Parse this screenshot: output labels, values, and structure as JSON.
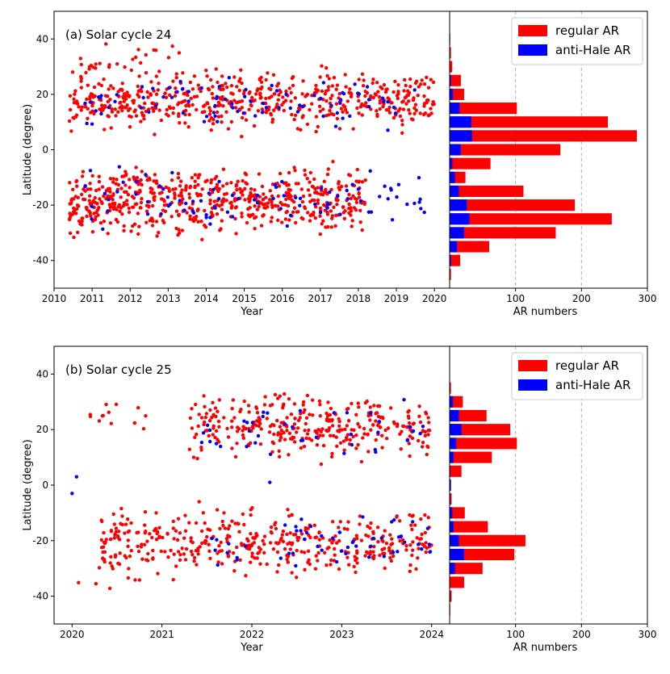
{
  "chart_data": [
    {
      "type": "scatter",
      "title": "(a) Solar cycle 24",
      "xlabel": "Year",
      "ylabel": "Latitude (degree)",
      "xlim": [
        2010,
        2020.4
      ],
      "ylim": [
        -50,
        50
      ],
      "xticks": [
        2010,
        2011,
        2012,
        2013,
        2014,
        2015,
        2016,
        2017,
        2018,
        2019,
        2020
      ],
      "yticks": [
        -40,
        -20,
        0,
        20,
        40
      ],
      "colors": {
        "regular": "#ff0000",
        "anti": "#0000ff"
      },
      "scatter_regions": [
        {
          "series": "regular",
          "x": [
            2010.4,
            2020.0
          ],
          "y": [
            4,
            32
          ],
          "count": 560,
          "seed": 11
        },
        {
          "series": "regular",
          "x": [
            2010.4,
            2018.2
          ],
          "y": [
            -34,
            -2
          ],
          "count": 620,
          "seed": 12
        },
        {
          "series": "regular",
          "x": [
            2010.6,
            2013.5
          ],
          "y": [
            24,
            40
          ],
          "count": 30,
          "seed": 13
        },
        {
          "series": "anti",
          "x": [
            2010.8,
            2019.5
          ],
          "y": [
            4,
            30
          ],
          "count": 85,
          "seed": 14
        },
        {
          "series": "anti",
          "x": [
            2010.8,
            2020.1
          ],
          "y": [
            -32,
            -4
          ],
          "count": 90,
          "seed": 15
        }
      ],
      "histogram": {
        "xlabel": "AR numbers",
        "xlim": [
          0,
          300
        ],
        "xticks": [
          100,
          200,
          300
        ],
        "grid": true,
        "bins": [
          {
            "lat": 40,
            "regular": 1,
            "anti": 0
          },
          {
            "lat": 35,
            "regular": 2,
            "anti": 0
          },
          {
            "lat": 30,
            "regular": 4,
            "anti": 0
          },
          {
            "lat": 25,
            "regular": 17,
            "anti": 2
          },
          {
            "lat": 20,
            "regular": 22,
            "anti": 5
          },
          {
            "lat": 15,
            "regular": 102,
            "anti": 15
          },
          {
            "lat": 10,
            "regular": 240,
            "anti": 33
          },
          {
            "lat": 5,
            "regular": 284,
            "anti": 34
          },
          {
            "lat": 0,
            "regular": 168,
            "anti": 17
          },
          {
            "lat": -5,
            "regular": 62,
            "anti": 4
          },
          {
            "lat": -10,
            "regular": 24,
            "anti": 8
          },
          {
            "lat": -15,
            "regular": 112,
            "anti": 14
          },
          {
            "lat": -20,
            "regular": 190,
            "anti": 26
          },
          {
            "lat": -25,
            "regular": 246,
            "anti": 30
          },
          {
            "lat": -30,
            "regular": 161,
            "anti": 22
          },
          {
            "lat": -35,
            "regular": 60,
            "anti": 11
          },
          {
            "lat": -40,
            "regular": 16,
            "anti": 2
          },
          {
            "lat": -45,
            "regular": 2,
            "anti": 0
          }
        ]
      },
      "legend": {
        "placement": "top-right",
        "entries": [
          "regular AR",
          "anti-Hale AR"
        ]
      }
    },
    {
      "type": "scatter",
      "title": "(b) Solar cycle 25",
      "xlabel": "Year",
      "ylabel": "Latitude (degree)",
      "xlim": [
        2019.8,
        2024.2
      ],
      "ylim": [
        -50,
        50
      ],
      "xticks": [
        2020,
        2021,
        2022,
        2023,
        2024
      ],
      "yticks": [
        -40,
        -20,
        0,
        20,
        40
      ],
      "colors": {
        "regular": "#ff0000",
        "anti": "#0000ff"
      },
      "scatter_regions": [
        {
          "series": "regular",
          "x": [
            2021.3,
            2024.0
          ],
          "y": [
            6,
            36
          ],
          "count": 330,
          "seed": 21
        },
        {
          "series": "regular",
          "x": [
            2020.2,
            2021.0
          ],
          "y": [
            19,
            34
          ],
          "count": 14,
          "seed": 22
        },
        {
          "series": "regular",
          "x": [
            2020.3,
            2024.0
          ],
          "y": [
            -36,
            -5
          ],
          "count": 420,
          "seed": 23
        },
        {
          "series": "regular",
          "x": [
            2020.0,
            2020.8
          ],
          "y": [
            -40,
            -30
          ],
          "count": 6,
          "seed": 24
        },
        {
          "series": "anti",
          "x": [
            2021.3,
            2024.0
          ],
          "y": [
            6,
            34
          ],
          "count": 40,
          "seed": 25
        },
        {
          "series": "anti",
          "x": [
            2021.5,
            2024.0
          ],
          "y": [
            -36,
            -6
          ],
          "count": 55,
          "seed": 26
        }
      ],
      "extra_points": {
        "anti": [
          [
            2020.0,
            -3
          ],
          [
            2020.05,
            3
          ],
          [
            2022.2,
            1
          ]
        ],
        "regular": []
      },
      "histogram": {
        "xlabel": "AR numbers",
        "xlim": [
          0,
          300
        ],
        "xticks": [
          100,
          200,
          300
        ],
        "grid": true,
        "bins": [
          {
            "lat": 40,
            "regular": 0,
            "anti": 0
          },
          {
            "lat": 35,
            "regular": 2,
            "anti": 0
          },
          {
            "lat": 30,
            "regular": 20,
            "anti": 5
          },
          {
            "lat": 25,
            "regular": 56,
            "anti": 14
          },
          {
            "lat": 20,
            "regular": 92,
            "anti": 18
          },
          {
            "lat": 15,
            "regular": 102,
            "anti": 10
          },
          {
            "lat": 10,
            "regular": 64,
            "anti": 6
          },
          {
            "lat": 5,
            "regular": 18,
            "anti": 1
          },
          {
            "lat": 0,
            "regular": 2,
            "anti": 2
          },
          {
            "lat": -5,
            "regular": 3,
            "anti": 1
          },
          {
            "lat": -10,
            "regular": 23,
            "anti": 4
          },
          {
            "lat": -15,
            "regular": 58,
            "anti": 6
          },
          {
            "lat": -20,
            "regular": 115,
            "anti": 14
          },
          {
            "lat": -25,
            "regular": 98,
            "anti": 22
          },
          {
            "lat": -30,
            "regular": 50,
            "anti": 8
          },
          {
            "lat": -35,
            "regular": 22,
            "anti": 0
          },
          {
            "lat": -40,
            "regular": 3,
            "anti": 1
          },
          {
            "lat": -45,
            "regular": 1,
            "anti": 0
          }
        ]
      },
      "legend": {
        "placement": "top-right",
        "entries": [
          "regular AR",
          "anti-Hale AR"
        ]
      }
    }
  ]
}
